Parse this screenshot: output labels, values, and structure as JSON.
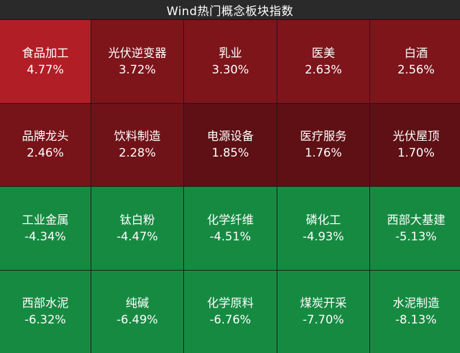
{
  "title": "Wind热门概念板块指数",
  "tiles": [
    {
      "name": "食品加工",
      "change": "4.77%",
      "color": "#b21e26"
    },
    {
      "name": "光伏逆变器",
      "change": "3.72%",
      "color": "#7d151b"
    },
    {
      "name": "乳业",
      "change": "3.30%",
      "color": "#7d151b"
    },
    {
      "name": "医美",
      "change": "2.63%",
      "color": "#7d151b"
    },
    {
      "name": "白酒",
      "change": "2.56%",
      "color": "#7d151b"
    },
    {
      "name": "品牌龙头",
      "change": "2.46%",
      "color": "#771419"
    },
    {
      "name": "饮料制造",
      "change": "2.28%",
      "color": "#6f1318"
    },
    {
      "name": "电源设备",
      "change": "1.85%",
      "color": "#5e1014"
    },
    {
      "name": "医疗服务",
      "change": "1.76%",
      "color": "#5e1014"
    },
    {
      "name": "光伏屋顶",
      "change": "1.70%",
      "color": "#5e1014"
    },
    {
      "name": "工业金属",
      "change": "-4.34%",
      "color": "#178a42"
    },
    {
      "name": "钛白粉",
      "change": "-4.47%",
      "color": "#178a42"
    },
    {
      "name": "化学纤维",
      "change": "-4.51%",
      "color": "#178a42"
    },
    {
      "name": "磷化工",
      "change": "-4.93%",
      "color": "#178a42"
    },
    {
      "name": "西部大基建",
      "change": "-5.13%",
      "color": "#178a42"
    },
    {
      "name": "西部水泥",
      "change": "-6.32%",
      "color": "#178a42"
    },
    {
      "name": "纯碱",
      "change": "-6.49%",
      "color": "#178a42"
    },
    {
      "name": "化学原料",
      "change": "-6.76%",
      "color": "#178a42"
    },
    {
      "name": "煤炭开采",
      "change": "-7.70%",
      "color": "#178a42"
    },
    {
      "name": "水泥制造",
      "change": "-8.13%",
      "color": "#178a42"
    }
  ]
}
